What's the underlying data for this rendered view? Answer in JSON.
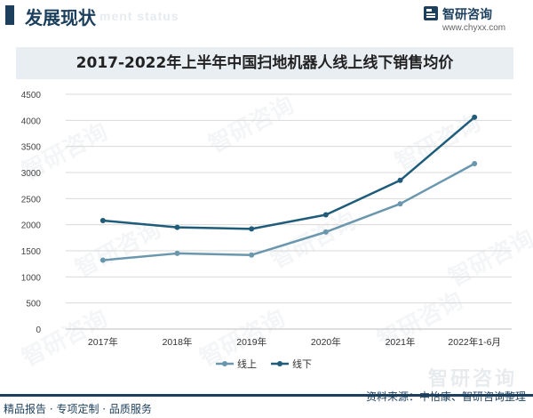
{
  "header": {
    "title": "发展现状",
    "subtitle": "ment status",
    "brand_name": "智研咨询",
    "brand_url": "www.chyxx.com"
  },
  "footer": {
    "left": "精品报告 · 专项定制 · 品质服务",
    "source": "资料来源：中怡康、智研咨询整理",
    "brand_watermark": "智研咨询"
  },
  "watermark_text": "智研咨询",
  "colors": {
    "brand": "#1b3f5c",
    "offline": "#1e5c7a",
    "online": "#6a97ad"
  },
  "chart_data": {
    "type": "line",
    "title": "2017-2022年上半年中国扫地机器人线上线下销售均价",
    "categories": [
      "2017年",
      "2018年",
      "2019年",
      "2020年",
      "2021年",
      "2022年1-6月"
    ],
    "series": [
      {
        "name": "线上",
        "values": [
          1320,
          1450,
          1420,
          1860,
          2400,
          3170
        ]
      },
      {
        "name": "线下",
        "values": [
          2080,
          1950,
          1920,
          2190,
          2850,
          4060
        ]
      }
    ],
    "ylim": [
      0,
      4500
    ],
    "yticks": [
      0,
      500,
      1000,
      1500,
      2000,
      2500,
      3000,
      3500,
      4000,
      4500
    ],
    "xlabel": "",
    "ylabel": "",
    "grid": true,
    "legend_position": "bottom"
  }
}
